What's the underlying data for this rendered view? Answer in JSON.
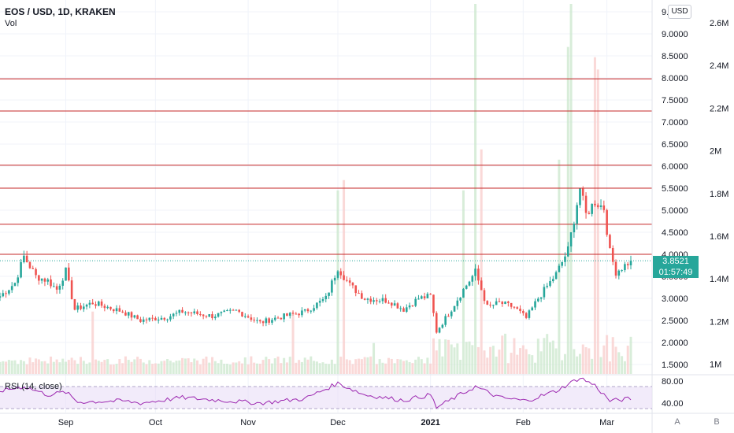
{
  "header": {
    "title": "EOS / USD, 1D, KRAKEN",
    "vol_label": "Vol"
  },
  "currency_badge": "USD",
  "last_price": {
    "value": "3.8521",
    "countdown": "01:57:49",
    "color": "#26a69a"
  },
  "rsi": {
    "label": "RSI (14, close)",
    "ticks": [
      "80.00",
      "40.00"
    ]
  },
  "scale_buttons": [
    "A",
    "B"
  ],
  "colors": {
    "up": "#26a69a",
    "down": "#ef5350",
    "resistance": "#c62828",
    "rsi_line": "#9c27b0",
    "rsi_band": "#e9ddf7"
  },
  "chart_data": {
    "type": "candlestick",
    "symbol": "EOS / USD",
    "timeframe": "1D",
    "exchange": "KRAKEN",
    "price_axis": {
      "ticks": [
        "9.",
        "9.0000",
        "8.5000",
        "8.0000",
        "7.5000",
        "7.0000",
        "6.5000",
        "6.0000",
        "5.5000",
        "5.0000",
        "4.5000",
        "4.0000",
        "3.5000",
        "3.0000",
        "2.5000",
        "2.0000",
        "1.5000"
      ],
      "range": [
        1.25,
        9.55
      ]
    },
    "volume_axis": {
      "ticks": [
        "2.6M",
        "2.4M",
        "2.2M",
        "2M",
        "1.8M",
        "1.6M",
        "1.4M",
        "1.2M",
        "1M"
      ],
      "range": [
        0.9,
        2.66
      ]
    },
    "x_ticks": [
      {
        "label": "Sep",
        "date": "2020-09-01"
      },
      {
        "label": "Oct",
        "date": "2020-10-01"
      },
      {
        "label": "Nov",
        "date": "2020-11-01"
      },
      {
        "label": "Dec",
        "date": "2020-12-01"
      },
      {
        "label": "2021",
        "date": "2021-01-01",
        "bold": true
      },
      {
        "label": "Feb",
        "date": "2021-02-01"
      },
      {
        "label": "Mar",
        "date": "2021-03-01"
      }
    ],
    "x_range": [
      "2020-08-10",
      "2021-03-09"
    ],
    "resistance_levels": [
      7.98,
      7.25,
      6.02,
      5.5,
      4.68,
      4.0
    ],
    "last_close": 3.8521,
    "close_key_points": [
      [
        "2020-08-10",
        3.05
      ],
      [
        "2020-08-15",
        3.35
      ],
      [
        "2020-08-18",
        3.95
      ],
      [
        "2020-08-22",
        3.5
      ],
      [
        "2020-08-26",
        3.4
      ],
      [
        "2020-08-29",
        3.2
      ],
      [
        "2020-09-01",
        3.62
      ],
      [
        "2020-09-04",
        2.75
      ],
      [
        "2020-09-10",
        2.9
      ],
      [
        "2020-09-20",
        2.7
      ],
      [
        "2020-09-26",
        2.5
      ],
      [
        "2020-10-05",
        2.58
      ],
      [
        "2020-10-10",
        2.7
      ],
      [
        "2020-10-20",
        2.6
      ],
      [
        "2020-10-28",
        2.72
      ],
      [
        "2020-11-05",
        2.45
      ],
      [
        "2020-11-10",
        2.55
      ],
      [
        "2020-11-20",
        2.7
      ],
      [
        "2020-11-27",
        3.0
      ],
      [
        "2020-12-01",
        3.7
      ],
      [
        "2020-12-05",
        3.3
      ],
      [
        "2020-12-10",
        3.0
      ],
      [
        "2020-12-18",
        2.95
      ],
      [
        "2020-12-23",
        2.75
      ],
      [
        "2020-12-28",
        3.0
      ],
      [
        "2021-01-01",
        3.05
      ],
      [
        "2021-01-03",
        2.25
      ],
      [
        "2021-01-07",
        2.65
      ],
      [
        "2021-01-12",
        3.2
      ],
      [
        "2021-01-16",
        3.6
      ],
      [
        "2021-01-20",
        2.8
      ],
      [
        "2021-01-24",
        2.9
      ],
      [
        "2021-01-29",
        2.8
      ],
      [
        "2021-02-02",
        2.55
      ],
      [
        "2021-02-06",
        3.0
      ],
      [
        "2021-02-12",
        3.55
      ],
      [
        "2021-02-16",
        4.1
      ],
      [
        "2021-02-20",
        5.5
      ],
      [
        "2021-02-22",
        4.9
      ],
      [
        "2021-02-25",
        5.2
      ],
      [
        "2021-02-28",
        5.05
      ],
      [
        "2021-03-02",
        4.05
      ],
      [
        "2021-03-04",
        3.6
      ],
      [
        "2021-03-06",
        3.7
      ],
      [
        "2021-03-09",
        3.85
      ]
    ],
    "rsi_key_points": [
      [
        "2020-08-10",
        62
      ],
      [
        "2020-08-18",
        70
      ],
      [
        "2020-08-26",
        55
      ],
      [
        "2020-09-01",
        60
      ],
      [
        "2020-09-05",
        42
      ],
      [
        "2020-09-20",
        44
      ],
      [
        "2020-09-26",
        40
      ],
      [
        "2020-10-10",
        50
      ],
      [
        "2020-10-20",
        46
      ],
      [
        "2020-11-05",
        40
      ],
      [
        "2020-11-20",
        48
      ],
      [
        "2020-12-01",
        76
      ],
      [
        "2020-12-10",
        55
      ],
      [
        "2020-12-23",
        45
      ],
      [
        "2021-01-01",
        55
      ],
      [
        "2021-01-03",
        32
      ],
      [
        "2021-01-16",
        70
      ],
      [
        "2021-01-24",
        50
      ],
      [
        "2021-02-02",
        44
      ],
      [
        "2021-02-12",
        62
      ],
      [
        "2021-02-20",
        86
      ],
      [
        "2021-02-25",
        72
      ],
      [
        "2021-03-02",
        44
      ],
      [
        "2021-03-09",
        48
      ]
    ],
    "volume_spikes": [
      [
        "2020-12-01",
        1.75
      ],
      [
        "2020-12-03",
        1.8
      ],
      [
        "2021-01-12",
        1.75
      ],
      [
        "2021-01-16",
        2.66
      ],
      [
        "2021-01-18",
        1.95
      ],
      [
        "2021-02-13",
        1.9
      ],
      [
        "2021-02-16",
        2.45
      ],
      [
        "2021-02-17",
        2.66
      ],
      [
        "2021-02-25",
        2.4
      ],
      [
        "2021-02-26",
        2.34
      ]
    ]
  }
}
